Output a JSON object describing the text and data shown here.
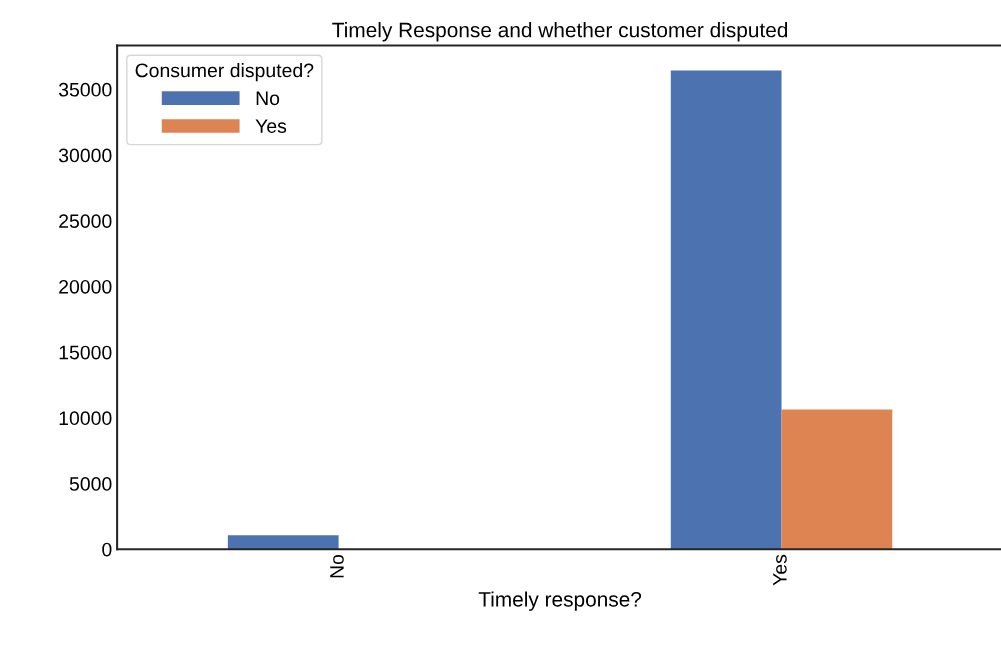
{
  "chart_data": {
    "type": "bar",
    "title": "Timely Response and whether customer disputed",
    "xlabel": "Timely response?",
    "legend_title": "Consumer disputed?",
    "categories": [
      "No",
      "Yes"
    ],
    "series": [
      {
        "name": "No",
        "color": "#4c72b0",
        "values": [
          1060,
          36440
        ]
      },
      {
        "name": "Yes",
        "color": "#dd8452",
        "values": [
          0,
          10630
        ]
      }
    ],
    "ylim": [
      0,
      38340
    ],
    "yticks": [
      0,
      5000,
      10000,
      15000,
      20000,
      25000,
      30000,
      35000
    ],
    "grid": false,
    "legend": "top left"
  }
}
